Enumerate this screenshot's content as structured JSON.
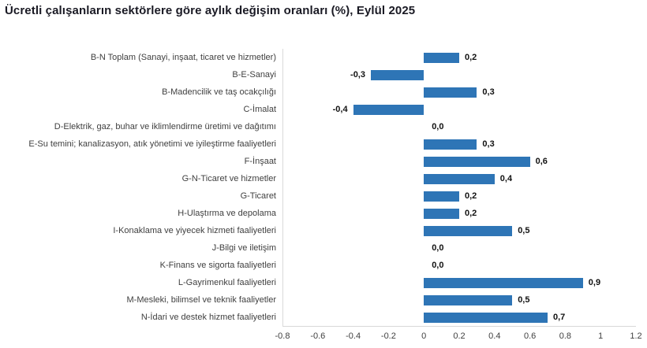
{
  "chart_data": {
    "type": "bar",
    "orientation": "horizontal",
    "title": "Ücretli çalışanların sektörlere göre aylık değişim oranları (%), Eylül 2025",
    "categories": [
      "B-N Toplam (Sanayi, inşaat, ticaret ve hizmetler)",
      "B-E-Sanayi",
      "B-Madencilik ve taş ocakçılığı",
      "C-İmalat",
      "D-Elektrik, gaz, buhar ve iklimlendirme üretimi ve dağıtımı",
      "E-Su temini; kanalizasyon, atık yönetimi ve iyileştirme faaliyetleri",
      "F-İnşaat",
      "G-N-Ticaret ve hizmetler",
      "G-Ticaret",
      "H-Ulaştırma ve depolama",
      "I-Konaklama ve yiyecek hizmeti faaliyetleri",
      "J-Bilgi ve iletişim",
      "K-Finans ve sigorta faaliyetleri",
      "L-Gayrimenkul faaliyetleri",
      "M-Mesleki, bilimsel ve teknik faaliyetler",
      "N-İdari ve destek hizmet faaliyetleri"
    ],
    "values": [
      0.2,
      -0.3,
      0.3,
      -0.4,
      0.0,
      0.3,
      0.6,
      0.4,
      0.2,
      0.2,
      0.5,
      0.0,
      0.0,
      0.9,
      0.5,
      0.7
    ],
    "value_labels": [
      "0,2",
      "-0,3",
      "0,3",
      "-0,4",
      "0,0",
      "0,3",
      "0,6",
      "0,4",
      "0,2",
      "0,2",
      "0,5",
      "0,0",
      "0,0",
      "0,9",
      "0,5",
      "0,7"
    ],
    "xlim": [
      -0.8,
      1.2
    ],
    "x_ticks": [
      -0.8,
      -0.6,
      -0.4,
      -0.2,
      0,
      0.2,
      0.4,
      0.6,
      0.8,
      1,
      1.2
    ],
    "x_tick_labels": [
      "-0.8",
      "-0.6",
      "-0.4",
      "-0.2",
      "0",
      "0.2",
      "0.4",
      "0.6",
      "0.8",
      "1",
      "1.2"
    ],
    "bar_color": "#2E75B6",
    "axis_line_color": "#D9D9D9",
    "grid": false,
    "legend": "none"
  }
}
